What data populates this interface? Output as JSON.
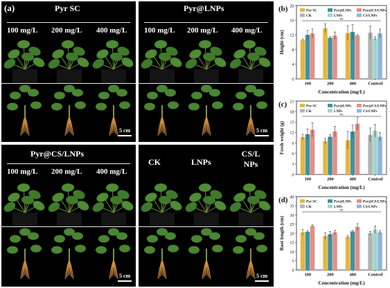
{
  "figure": {
    "panel_a": {
      "letter": "(a)",
      "quadrants": [
        {
          "title": "Pyr SC",
          "labels": [
            "100 mg/L",
            "200 mg/L",
            "400 mg/L"
          ],
          "scale": "5 cm"
        },
        {
          "title": "Pyr@LNPs",
          "labels": [
            "100 mg/L",
            "200 mg/L",
            "400 mg/L"
          ],
          "scale": "5 cm"
        },
        {
          "title": "Pyr@CS/LNPs",
          "labels": [
            "100 mg/L",
            "200 mg/L",
            "400 mg/L"
          ],
          "scale": "5 cm"
        },
        {
          "title": "",
          "labels": [
            "CK",
            "LNPs",
            "CS/L NPs"
          ],
          "scale": "5 cm"
        }
      ]
    }
  },
  "chart_data": [
    {
      "type": "bar",
      "panel": "(b)",
      "ylabel": "Height (cm)",
      "xlabel": "Concentration (mg/L)",
      "ylim": [
        0,
        20
      ],
      "yticks": [
        0,
        4,
        8,
        12,
        16,
        20
      ],
      "categories": [
        "100",
        "200",
        "400",
        "Control"
      ],
      "legend": [
        "Pyr SC",
        "Pyr@LNPs",
        "Pyr@CS/LNPs",
        "CK",
        "LNPs",
        "CS/LNPs"
      ],
      "annotation": "ns",
      "series": [
        {
          "name": "Pyr SC",
          "values": [
            10.6,
            13.8,
            12.5,
            null
          ]
        },
        {
          "name": "Pyr@LNPs",
          "values": [
            12.0,
            11.2,
            12.8,
            null
          ]
        },
        {
          "name": "Pyr@CS/LNPs",
          "values": [
            12.4,
            11.8,
            11.8,
            null
          ]
        },
        {
          "name": "CK",
          "values": [
            null,
            null,
            null,
            12.6
          ]
        },
        {
          "name": "LNPs",
          "values": [
            null,
            null,
            null,
            11.0
          ]
        },
        {
          "name": "CS/LNPs",
          "values": [
            null,
            null,
            null,
            12.4
          ]
        }
      ],
      "errors": [
        [
          0.3,
          1.2,
          2.0,
          null
        ],
        [
          1.2,
          0.3,
          2.0,
          null
        ],
        [
          1.2,
          1.0,
          0.3,
          null
        ],
        [
          null,
          null,
          null,
          1.8
        ],
        [
          null,
          null,
          null,
          0.5
        ],
        [
          null,
          null,
          null,
          1.2
        ]
      ]
    },
    {
      "type": "bar",
      "panel": "(c)",
      "ylabel": "Fresh weight (g)",
      "xlabel": "Concentration (mg/L)",
      "ylim": [
        0,
        21
      ],
      "yticks": [
        0,
        3,
        6,
        9,
        12,
        15,
        18,
        21
      ],
      "categories": [
        "100",
        "200",
        "400",
        "Control"
      ],
      "legend": [
        "Pyr SC",
        "Pyr@LNPs",
        "Pyr@CS/LNPs",
        "CK",
        "LNPs",
        "CS/LNPs"
      ],
      "annotation": "ns",
      "series": [
        {
          "name": "Pyr SC",
          "values": [
            10.7,
            9.5,
            9.8,
            null
          ]
        },
        {
          "name": "Pyr@LNPs",
          "values": [
            11.5,
            10.8,
            12.3,
            null
          ]
        },
        {
          "name": "Pyr@CS/LNPs",
          "values": [
            12.8,
            12.3,
            14.5,
            null
          ]
        },
        {
          "name": "CK",
          "values": [
            null,
            null,
            null,
            11.3
          ]
        },
        {
          "name": "LNPs",
          "values": [
            null,
            null,
            null,
            12.5
          ]
        },
        {
          "name": "CS/LNPs",
          "values": [
            null,
            null,
            null,
            10.8
          ]
        }
      ],
      "errors": [
        [
          0.8,
          0.8,
          2.5,
          null
        ],
        [
          1.5,
          0.6,
          1.8,
          null
        ],
        [
          2.0,
          1.5,
          1.8,
          null
        ],
        [
          null,
          null,
          null,
          2.0
        ],
        [
          null,
          null,
          null,
          1.8
        ],
        [
          null,
          null,
          null,
          1.2
        ]
      ]
    },
    {
      "type": "bar",
      "panel": "(d)",
      "ylabel": "Root length (cm)",
      "xlabel": "Concentration (mg/L)",
      "ylim": [
        0,
        40
      ],
      "yticks": [
        0,
        5,
        10,
        15,
        20,
        25,
        30,
        35,
        40
      ],
      "categories": [
        "100",
        "200",
        "400",
        "Control"
      ],
      "legend": [
        "Pyr SC",
        "Pyr@LNPs",
        "Pyr@CS/LNPs",
        "CK",
        "LNPs",
        "CS/LNPs"
      ],
      "annotation": "ns",
      "series": [
        {
          "name": "Pyr SC",
          "values": [
            20.5,
            18.5,
            18.0,
            null
          ]
        },
        {
          "name": "Pyr@LNPs",
          "values": [
            20.8,
            19.5,
            21.0,
            null
          ]
        },
        {
          "name": "Pyr@CS/LNPs",
          "values": [
            24.0,
            20.5,
            23.5,
            null
          ]
        },
        {
          "name": "CK",
          "values": [
            null,
            null,
            null,
            20.0
          ]
        },
        {
          "name": "LNPs",
          "values": [
            null,
            null,
            null,
            22.0
          ]
        },
        {
          "name": "CS/LNPs",
          "values": [
            null,
            null,
            null,
            20.5
          ]
        }
      ],
      "errors": [
        [
          1.5,
          1.8,
          0.8,
          null
        ],
        [
          0.6,
          1.5,
          0.6,
          null
        ],
        [
          0.6,
          1.2,
          1.8,
          null
        ],
        [
          null,
          null,
          null,
          1.0
        ],
        [
          null,
          null,
          null,
          2.0
        ],
        [
          null,
          null,
          null,
          1.0
        ]
      ]
    }
  ],
  "colors": {
    "Pyr SC": "#e7b63f",
    "Pyr@LNPs": "#3f93a0",
    "Pyr@CS/LNPs": "#e58f86",
    "CK": "#b3b3b3",
    "LNPs": "#9fd6c8",
    "CS/LNPs": "#8fb3d9"
  }
}
